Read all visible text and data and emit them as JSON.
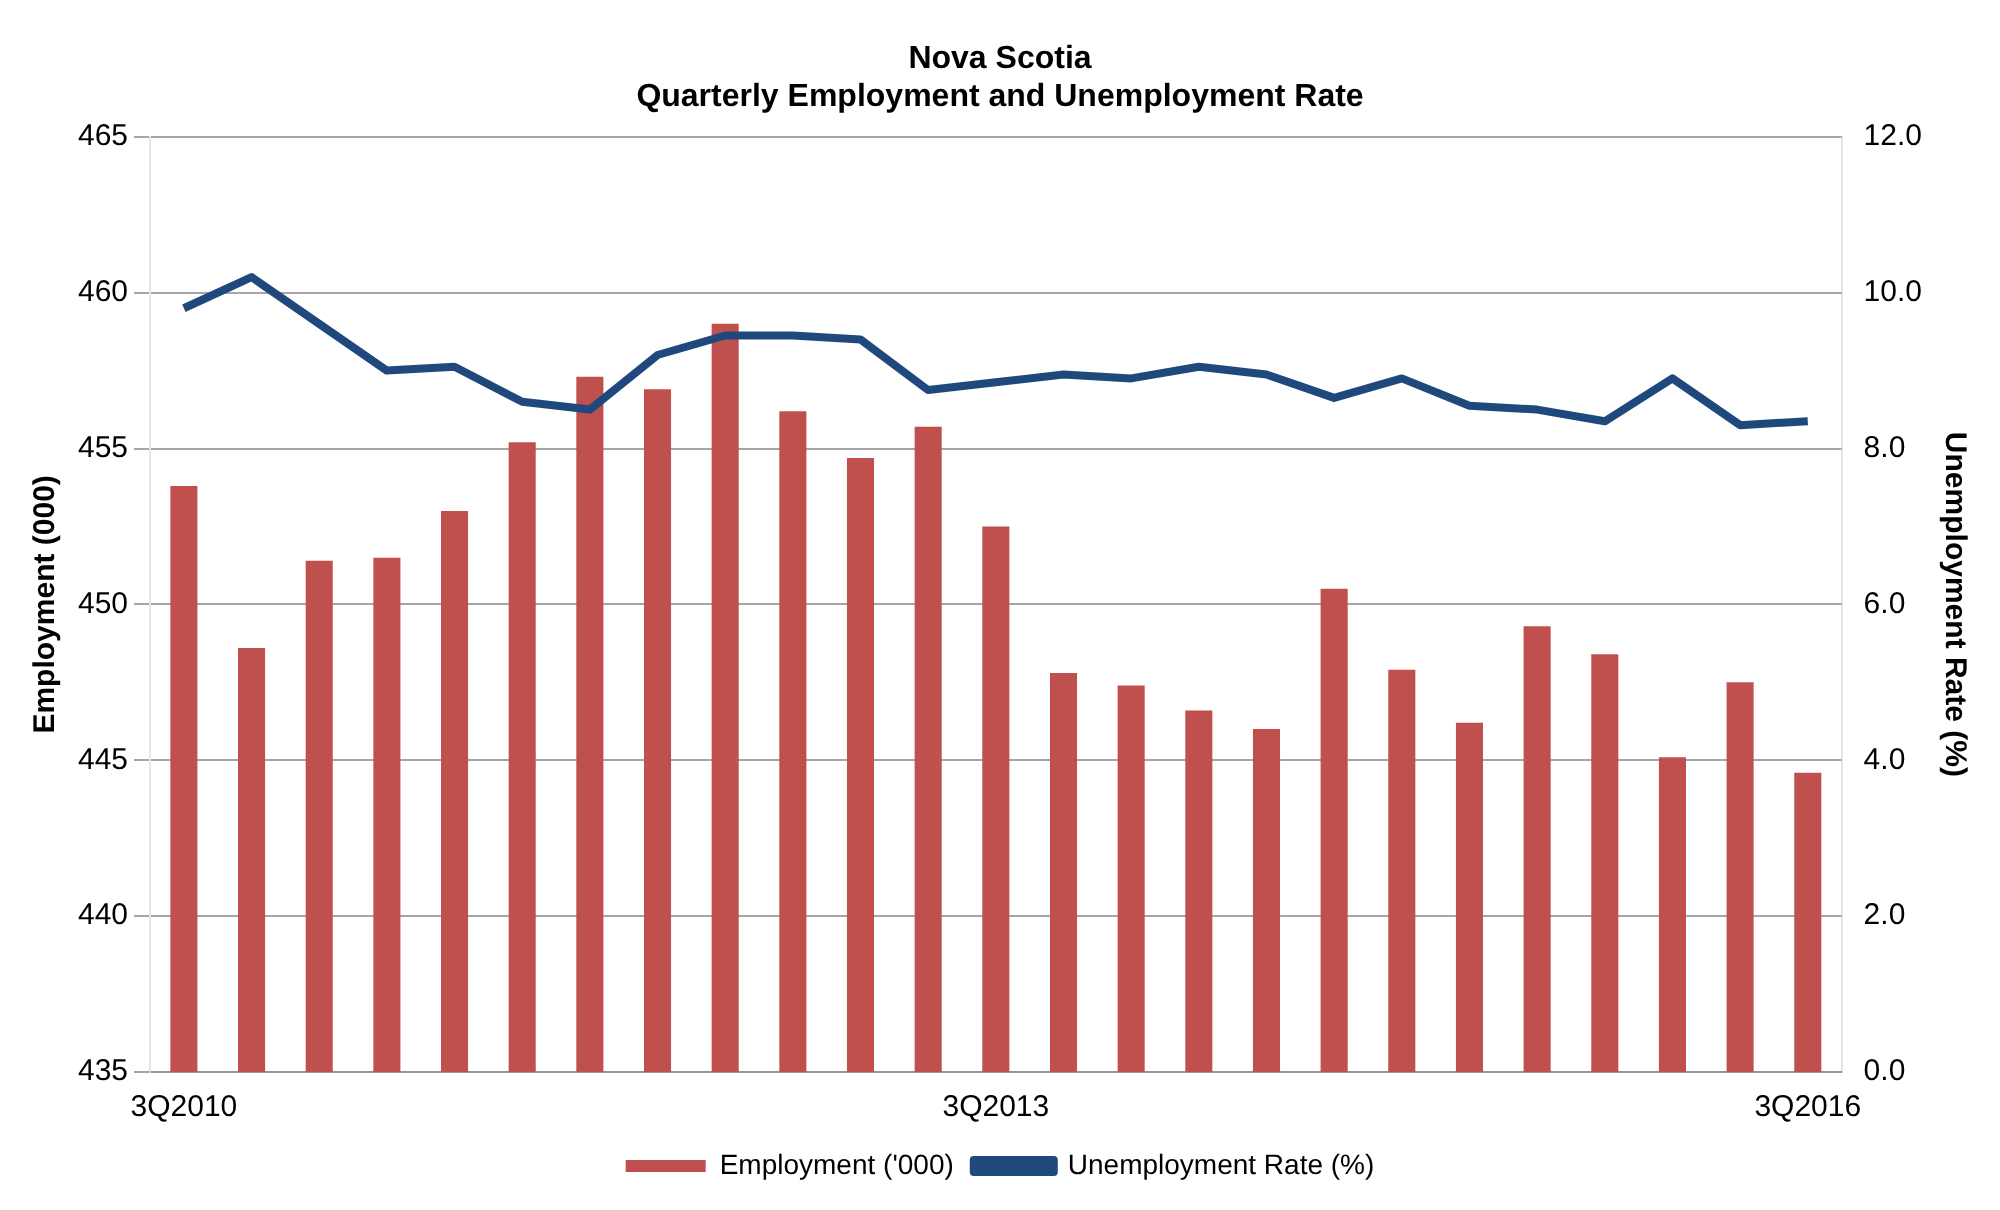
{
  "chart_data": {
    "type": "bar",
    "title": "Nova Scotia",
    "subtitle": "Quarterly Employment and Unemployment Rate",
    "ylabel": "Employment (000)",
    "y2label": "Unemployment Rate (%)",
    "categories": [
      "3Q2010",
      null,
      null,
      null,
      null,
      null,
      null,
      null,
      null,
      null,
      null,
      null,
      "3Q2013",
      null,
      null,
      null,
      null,
      null,
      null,
      null,
      null,
      null,
      null,
      null,
      "3Q2016"
    ],
    "series": [
      {
        "name": "Employment ('000)",
        "color": "#c0504d",
        "values": [
          453.8,
          448.6,
          451.4,
          451.5,
          453.0,
          455.2,
          457.3,
          456.9,
          459.0,
          456.2,
          454.7,
          455.7,
          452.5,
          447.8,
          447.4,
          446.6,
          446.0,
          450.5,
          447.9,
          446.2,
          449.3,
          448.4,
          445.1,
          447.5,
          444.6
        ]
      },
      {
        "name": "Unemployment Rate (%)",
        "type": "line",
        "axis": "y2",
        "color": "#1f497d",
        "values": [
          9.8,
          10.2,
          9.6,
          9.0,
          9.05,
          8.6,
          8.5,
          9.2,
          9.45,
          9.45,
          9.4,
          8.75,
          8.85,
          8.95,
          8.9,
          9.05,
          8.95,
          8.65,
          8.9,
          8.55,
          8.5,
          8.35,
          8.9,
          8.3,
          8.35
        ]
      }
    ],
    "ylim": [
      435,
      465
    ],
    "yticks": [
      435,
      440,
      445,
      450,
      455,
      460,
      465
    ],
    "y2lim": [
      0,
      12
    ],
    "y2ticks": [
      {
        "value": 0,
        "label": "0.0"
      },
      {
        "value": 2,
        "label": "2.0"
      },
      {
        "value": 4,
        "label": "4.0"
      },
      {
        "value": 6,
        "label": "6.0"
      },
      {
        "value": 8,
        "label": "8.0"
      },
      {
        "value": 10,
        "label": "10.0"
      },
      {
        "value": 12,
        "label": "12.0"
      }
    ],
    "grid": "y",
    "legend": "bottom",
    "marker": "none",
    "line_style": "solid"
  }
}
